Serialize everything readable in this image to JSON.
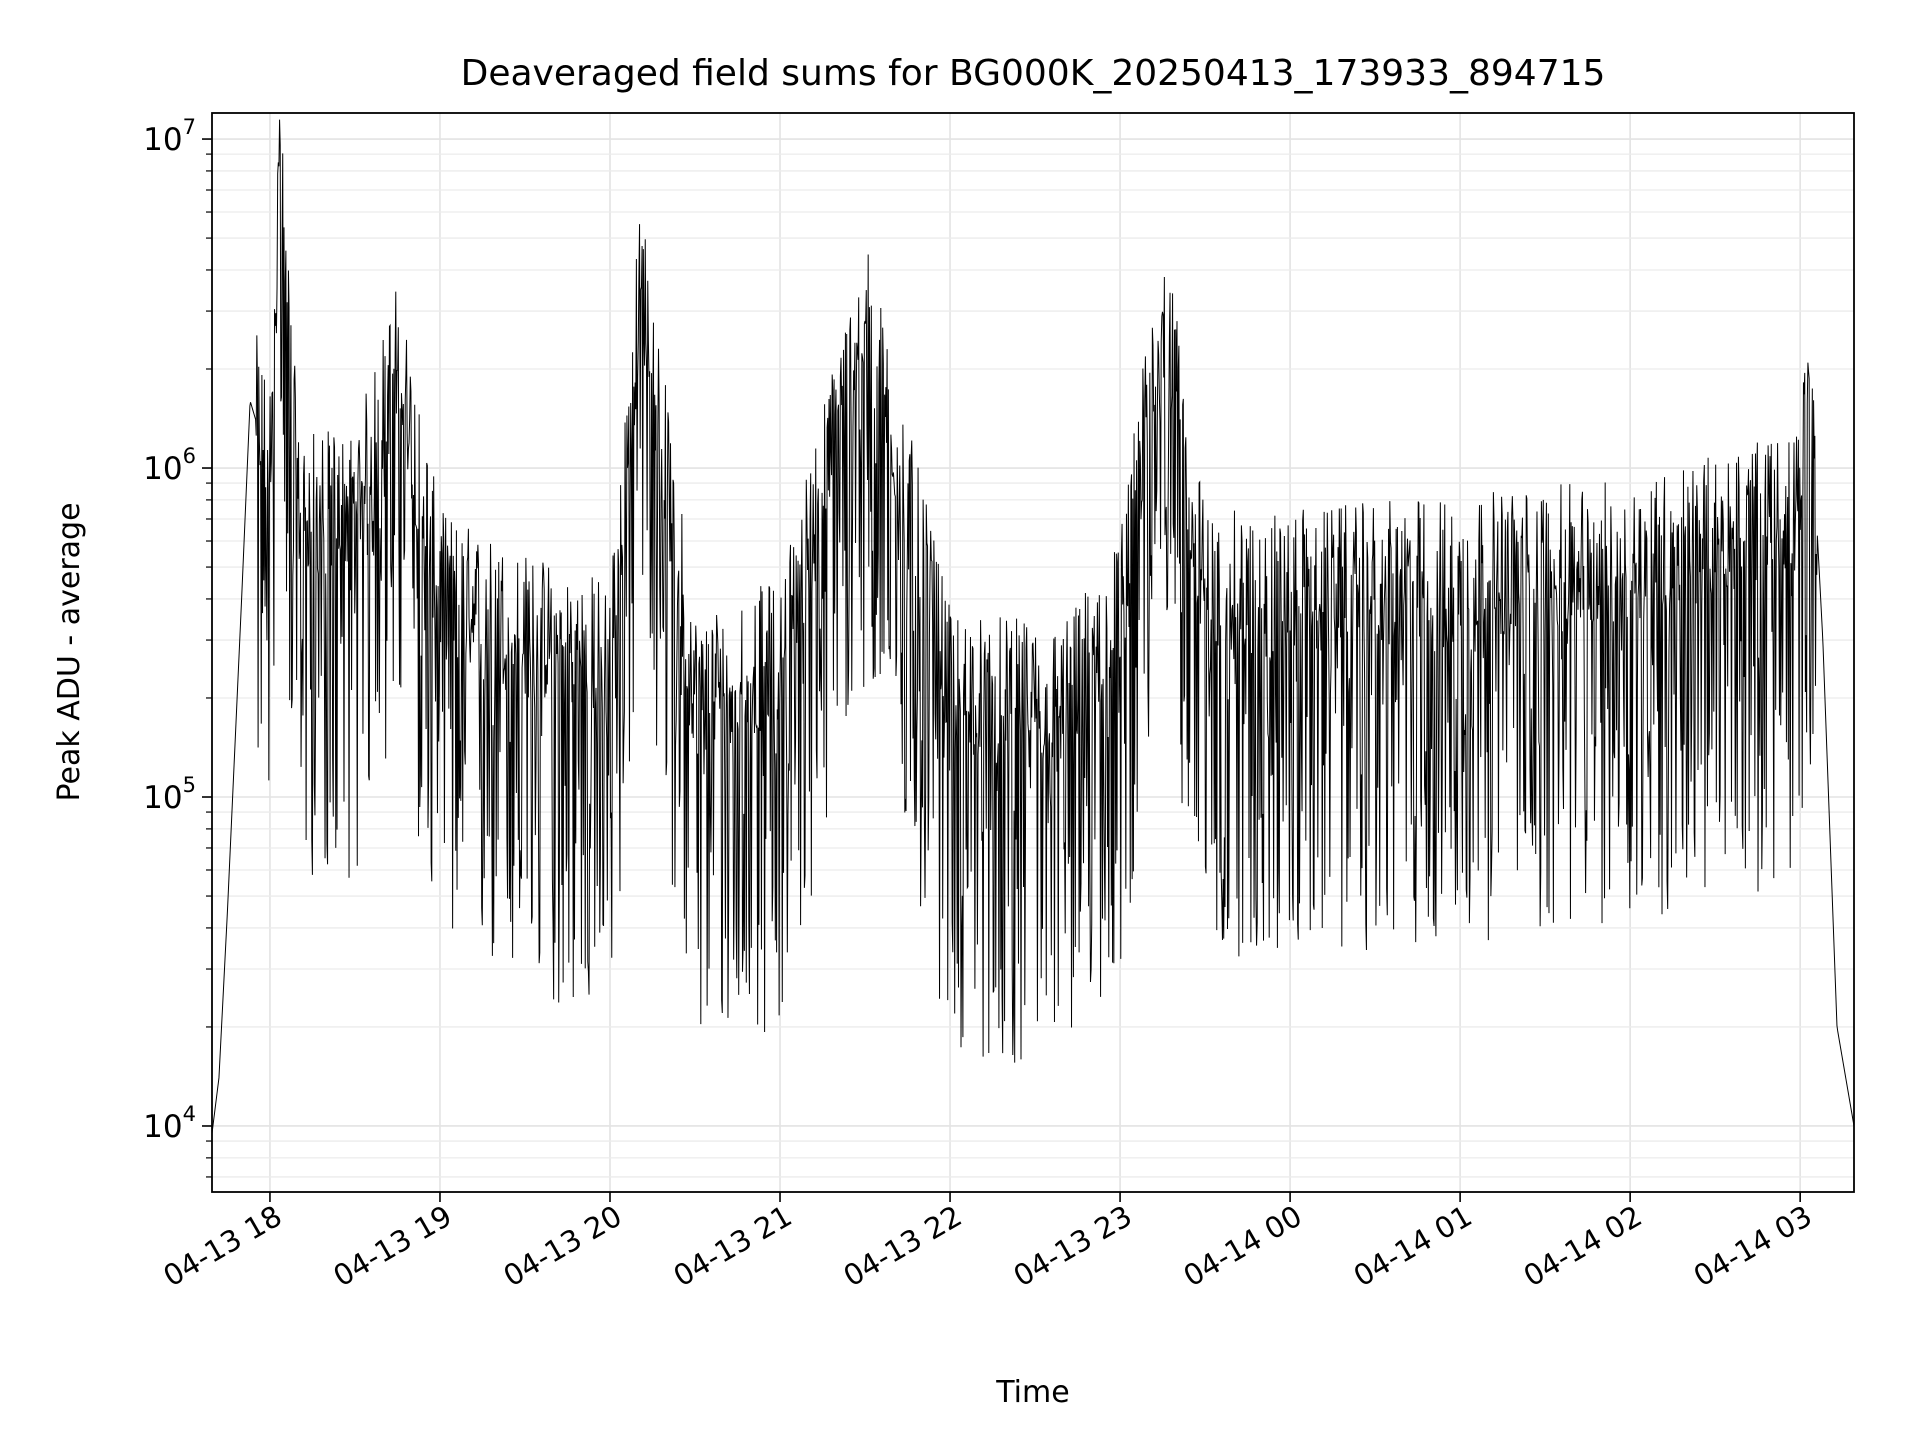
{
  "chart_data": {
    "type": "line",
    "title": "Deaveraged field sums for BG000K_20250413_173933_894715",
    "xlabel": "Time",
    "ylabel": "Peak ADU - average",
    "yscale": "log",
    "ylim": [
      6300,
      12000000
    ],
    "xlim": [
      "2025-04-13 17:39:33",
      "2025-04-14 03:19:00"
    ],
    "grid": true,
    "x_ticks": [
      "04-13 18",
      "04-13 19",
      "04-13 20",
      "04-13 21",
      "04-13 22",
      "04-13 23",
      "04-14 00",
      "04-14 01",
      "04-14 02",
      "04-14 03"
    ],
    "y_ticks": [
      {
        "base": "10",
        "exp": "4",
        "value": 10000
      },
      {
        "base": "10",
        "exp": "5",
        "value": 100000
      },
      {
        "base": "10",
        "exp": "6",
        "value": 1000000
      },
      {
        "base": "10",
        "exp": "7",
        "value": 10000000
      }
    ],
    "series": [
      {
        "color": "#000000",
        "description_points": [
          [
            "2025-04-13 17:39:33",
            9500
          ],
          [
            "2025-04-13 17:42",
            14000
          ],
          [
            "2025-04-13 17:45",
            45000
          ],
          [
            "2025-04-13 17:50",
            400000
          ],
          [
            "2025-04-13 17:53",
            1600000
          ],
          [
            "2025-04-13 18:00",
            1000000
          ],
          [
            "2025-04-13 18:03",
            8800000
          ],
          [
            "2025-04-13 18:10",
            700000
          ],
          [
            "2025-04-13 18:30",
            700000
          ],
          [
            "2025-04-13 18:45",
            2000000
          ],
          [
            "2025-04-13 19:00",
            400000
          ],
          [
            "2025-04-13 19:30",
            300000
          ],
          [
            "2025-04-13 20:00",
            250000
          ],
          [
            "2025-04-13 20:11",
            3600000
          ],
          [
            "2025-04-13 20:30",
            200000
          ],
          [
            "2025-04-13 21:00",
            250000
          ],
          [
            "2025-04-13 21:30",
            2800000
          ],
          [
            "2025-04-13 22:00",
            200000
          ],
          [
            "2025-04-13 22:40",
            180000
          ],
          [
            "2025-04-13 23:00",
            350000
          ],
          [
            "2025-04-13 23:15",
            3000000
          ],
          [
            "2025-04-13 23:30",
            400000
          ],
          [
            "2025-04-14 00:00",
            400000
          ],
          [
            "2025-04-14 01:00",
            450000
          ],
          [
            "2025-04-14 02:00",
            500000
          ],
          [
            "2025-04-14 03:00",
            700000
          ],
          [
            "2025-04-14 03:03",
            2000000
          ],
          [
            "2025-04-14 03:08",
            300000
          ],
          [
            "2025-04-14 03:13",
            20000
          ],
          [
            "2025-04-14 03:19",
            10000
          ]
        ]
      }
    ]
  }
}
